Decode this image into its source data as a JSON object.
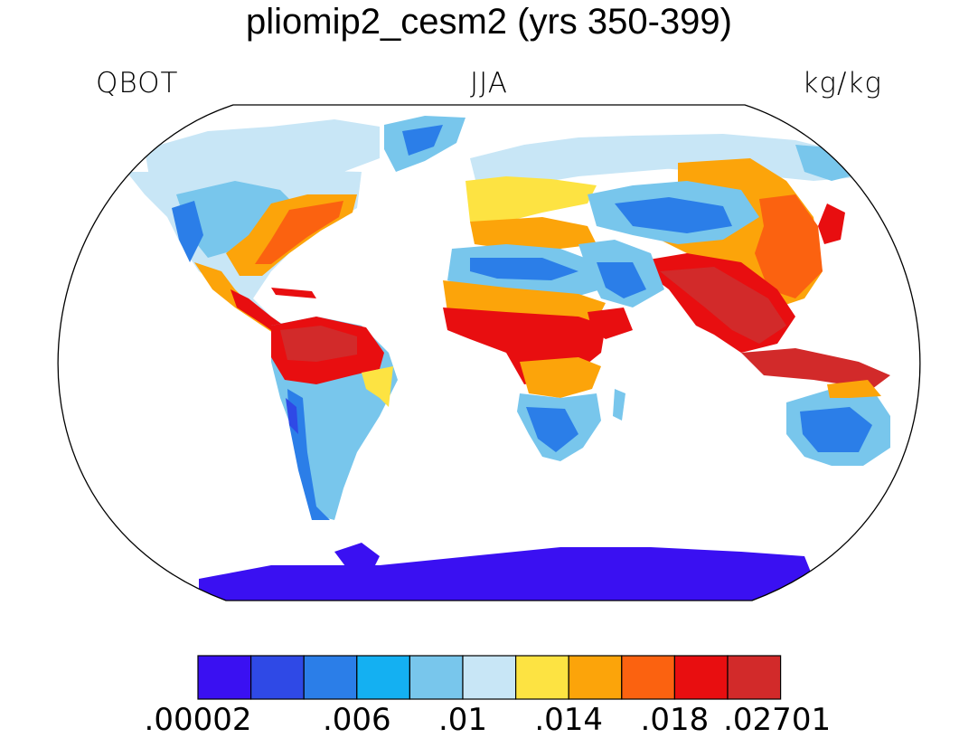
{
  "title": "pliomip2_cesm2 (yrs 350-399)",
  "subtitle_left": "QBOT",
  "subtitle_center": "JJA",
  "subtitle_right": "kg/kg",
  "colorbar": {
    "colors": [
      "#3a10f2",
      "#2f49e6",
      "#2b7ee8",
      "#14b0f2",
      "#78c6ec",
      "#c8e6f6",
      "#fde342",
      "#fca40a",
      "#fb6210",
      "#e80e10",
      "#d22a2a"
    ],
    "tick_labels": [
      ".00002",
      ".006",
      ".01",
      ".014",
      ".018",
      ".02701"
    ]
  },
  "map": {
    "projection": "Robinson",
    "field": "QBOT",
    "season": "JJA",
    "ocean_masked": true,
    "coastlines": true
  }
}
